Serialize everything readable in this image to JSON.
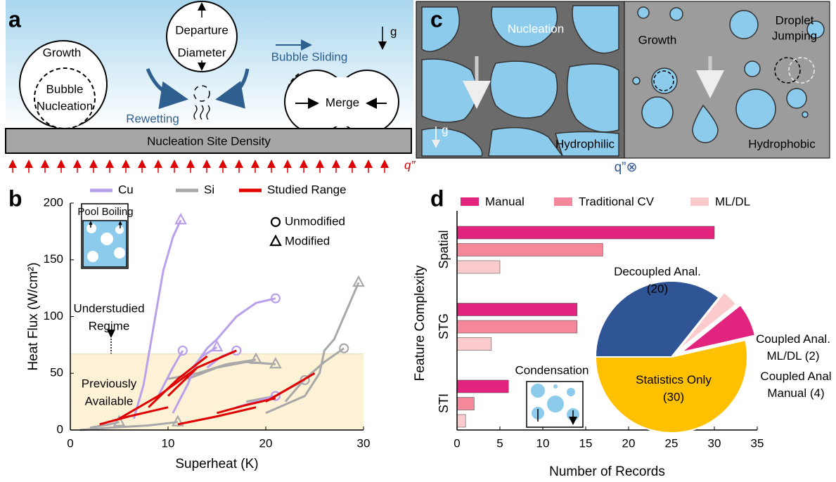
{
  "panel_a": {
    "label": "a",
    "growth": "Growth",
    "nucleation": [
      "Bubble",
      "Nucleation"
    ],
    "departure": [
      "Departure",
      "Diameter"
    ],
    "rewetting": "Rewetting",
    "sliding": "Bubble Sliding",
    "merge": "Merge",
    "gravity": "g",
    "surface": "Nucleation Site Density",
    "heat_flux": "q”"
  },
  "panel_c": {
    "label": "c",
    "nucleation": "Nucleation",
    "hydrophilic": "Hydrophilic",
    "growth": "Growth",
    "jumping": [
      "Droplet",
      "Jumping"
    ],
    "hydrophobic": "Hydrophobic",
    "gravity": "g",
    "heat_flux": "q”⊗"
  },
  "chart_data": [
    {
      "type": "line",
      "panel_label": "b",
      "xlabel": "Superheat (K)",
      "ylabel": "Heat Flux (W/cm²)",
      "xlim": [
        0,
        30
      ],
      "ylim": [
        0,
        200
      ],
      "xticks": [
        0,
        10,
        20,
        30
      ],
      "yticks": [
        0,
        50,
        100,
        150,
        200
      ],
      "regime_boundary": 67,
      "series": [
        {
          "name": "Cu",
          "color": "#b9a0ea",
          "curves": [
            {
              "x": [
                6.5,
                7.5,
                8.5,
                9.5,
                10.5,
                11.3
              ],
              "values": [
                10,
                40,
                90,
                140,
                170,
                185
              ],
              "marker": "triangle"
            },
            {
              "x": [
                10.5,
                12,
                13,
                14,
                15,
                17,
                19,
                21
              ],
              "values": [
                15,
                40,
                60,
                72,
                80,
                100,
                112,
                116
              ],
              "marker": "circle"
            },
            {
              "x": [
                12.5,
                13.5,
                15
              ],
              "values": [
                55,
                65,
                73
              ],
              "marker": "triangle"
            },
            {
              "x": [
                9,
                10.5,
                11.5
              ],
              "values": [
                30,
                55,
                70
              ],
              "marker": "circle"
            },
            {
              "x": [
                14,
                15.5,
                17
              ],
              "values": [
                55,
                65,
                70
              ],
              "marker": "circle"
            },
            {
              "x": [
                17,
                19,
                21
              ],
              "values": [
                20,
                25,
                30
              ],
              "marker": "circle"
            }
          ]
        },
        {
          "name": "Si",
          "color": "#a8a8a8",
          "curves": [
            {
              "x": [
                1,
                4,
                8,
                11
              ],
              "values": [
                0,
                2,
                4,
                7
              ],
              "marker": "triangle"
            },
            {
              "x": [
                2,
                4,
                5
              ],
              "values": [
                2,
                5,
                7
              ],
              "marker": "triangle"
            },
            {
              "x": [
                20,
                24,
                25.5,
                26,
                27,
                28,
                29.5
              ],
              "values": [
                15,
                30,
                50,
                70,
                80,
                100,
                130
              ],
              "marker": "triangle"
            },
            {
              "x": [
                22,
                24,
                26,
                28
              ],
              "values": [
                25,
                45,
                60,
                72
              ],
              "marker": "circle"
            },
            {
              "x": [
                10,
                13,
                16,
                19
              ],
              "values": [
                45,
                50,
                58,
                62
              ],
              "marker": "triangle"
            },
            {
              "x": [
                12,
                15,
                18,
                21
              ],
              "values": [
                45,
                55,
                60,
                58
              ],
              "marker": "triangle"
            },
            {
              "x": [
                18,
                21,
                24
              ],
              "values": [
                25,
                30,
                44
              ],
              "marker": "circle"
            }
          ]
        },
        {
          "name": "Studied Range",
          "color": "#e00000",
          "curves": [
            {
              "x": [
                3,
                6,
                10
              ],
              "values": [
                5,
                12,
                20
              ],
              "marker": null
            },
            {
              "x": [
                8,
                11,
                14
              ],
              "values": [
                20,
                45,
                65
              ],
              "marker": null
            },
            {
              "x": [
                10,
                13,
                17
              ],
              "values": [
                30,
                55,
                70
              ],
              "marker": null
            },
            {
              "x": [
                11,
                15,
                19
              ],
              "values": [
                5,
                12,
                20
              ],
              "marker": null
            },
            {
              "x": [
                15,
                18,
                21
              ],
              "values": [
                15,
                22,
                28
              ],
              "marker": null
            },
            {
              "x": [
                20,
                23,
                25
              ],
              "values": [
                25,
                40,
                50
              ],
              "marker": null
            },
            {
              "x": [
                5,
                9,
                13
              ],
              "values": [
                10,
                30,
                55
              ],
              "marker": null
            }
          ]
        }
      ],
      "marker_legend": [
        {
          "name": "Unmodified",
          "marker": "circle"
        },
        {
          "name": "Modified",
          "marker": "triangle"
        }
      ],
      "annotations": {
        "inset": "Pool Boiling",
        "upper": [
          "Understudied",
          "Regime"
        ],
        "lower": [
          "Previously",
          "Available"
        ]
      }
    },
    {
      "type": "barh",
      "panel_label": "d",
      "categories": [
        "Spatial",
        "STG",
        "STI"
      ],
      "series": [
        {
          "name": "Manual",
          "color": "#e2247f",
          "values": [
            30,
            14,
            6
          ]
        },
        {
          "name": "Traditional CV",
          "color": "#f5879a",
          "values": [
            17,
            14,
            2
          ]
        },
        {
          "name": "ML/DL",
          "color": "#fbcacd",
          "values": [
            5,
            4,
            1
          ]
        }
      ],
      "xlim": [
        0,
        35
      ],
      "xticks": [
        0,
        5,
        10,
        15,
        20,
        25,
        30,
        35
      ],
      "xlabel": "Number of Records",
      "ylabel": "Feature Complexity",
      "inset": "Condensation"
    },
    {
      "type": "pie",
      "categories": [
        [
          "Statistics Only"
        ],
        [
          "Coupled Anal",
          "Manual"
        ],
        [
          "Coupled Anal.",
          "ML/DL"
        ],
        [
          "Decoupled Anal."
        ]
      ],
      "values": [
        30,
        4,
        2,
        20
      ],
      "value_labels": [
        "(30)",
        "(4)",
        "(2)",
        "(20)"
      ],
      "colors": [
        "#ffc000",
        "#e2247f",
        "#fbcacd",
        "#2f5597"
      ],
      "startangle": 180,
      "explode": [
        0,
        0.14,
        0.1,
        0
      ]
    }
  ]
}
